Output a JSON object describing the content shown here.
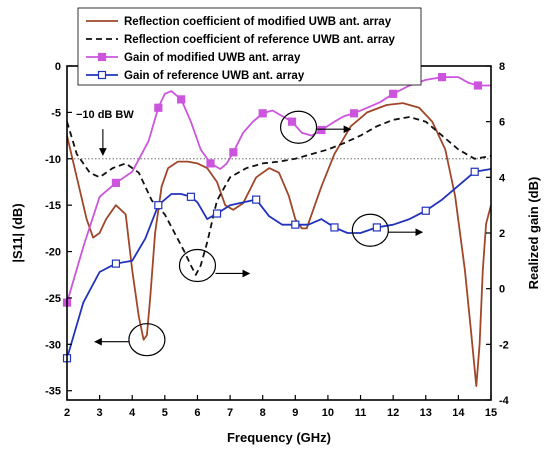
{
  "chart_data": {
    "type": "line",
    "xlabel": "Frequency (GHz)",
    "ylabel_left": "|S11| (dB)",
    "ylabel_right": "Realized gain (dB)",
    "xlim": [
      2,
      15
    ],
    "ylim_left": [
      -36,
      0
    ],
    "ylim_right": [
      -4,
      8
    ],
    "xticks": [
      2,
      3,
      4,
      5,
      6,
      7,
      8,
      9,
      10,
      11,
      12,
      13,
      14,
      15
    ],
    "yticks_left": [
      0,
      -5,
      -10,
      -15,
      -20,
      -25,
      -30,
      -35
    ],
    "yticks_right": [
      -4,
      -2,
      0,
      2,
      4,
      6,
      8
    ],
    "threshold": {
      "value": -10,
      "label": "−10 dB BW"
    },
    "legend": {
      "placement": "top-center"
    },
    "colors": {
      "modified_s11": "#a0472a",
      "reference_s11": "#111111",
      "modified_gain": "#cc55dd",
      "reference_gain": "#2233bb",
      "threshold": "#555555"
    },
    "series": [
      {
        "name": "Reflection coefficient of modified UWB ant. array",
        "axis": "left",
        "style": "solid",
        "x": [
          2.0,
          2.3,
          2.6,
          2.8,
          3.0,
          3.2,
          3.5,
          3.8,
          4.0,
          4.2,
          4.35,
          4.45,
          4.55,
          4.7,
          4.9,
          5.1,
          5.4,
          5.7,
          6.0,
          6.3,
          6.6,
          6.85,
          7.1,
          7.4,
          7.8,
          8.2,
          8.5,
          8.8,
          9.0,
          9.2,
          9.35,
          9.5,
          9.8,
          10.2,
          10.7,
          11.2,
          11.8,
          12.3,
          12.8,
          13.2,
          13.6,
          13.9,
          14.2,
          14.4,
          14.55,
          14.65,
          14.75,
          14.85,
          15.0
        ],
        "y": [
          -7.5,
          -12,
          -16.5,
          -18.5,
          -18,
          -16.5,
          -15,
          -16,
          -22,
          -27,
          -29.5,
          -29,
          -25,
          -18,
          -13,
          -11,
          -10.3,
          -10.3,
          -10.5,
          -11,
          -12.5,
          -15,
          -15.5,
          -14.8,
          -12,
          -11,
          -11.5,
          -14,
          -16.5,
          -17.5,
          -17.5,
          -16,
          -13,
          -9.5,
          -6.5,
          -5,
          -4.2,
          -4,
          -4.5,
          -6,
          -9,
          -14,
          -22,
          -29,
          -34.5,
          -30,
          -22,
          -17,
          -15
        ]
      },
      {
        "name": "Reflection coefficient of reference UWB ant. array",
        "axis": "left",
        "style": "dashed",
        "x": [
          2.0,
          2.3,
          2.7,
          3.0,
          3.4,
          3.8,
          4.2,
          4.6,
          5.0,
          5.3,
          5.6,
          5.8,
          5.95,
          6.1,
          6.3,
          6.6,
          7.0,
          7.5,
          8.0,
          8.5,
          9.0,
          9.5,
          10.0,
          10.5,
          11.0,
          11.5,
          12.0,
          12.5,
          13.0,
          13.5,
          14.0,
          14.5,
          15.0
        ],
        "y": [
          -6,
          -9.5,
          -11.5,
          -12,
          -11,
          -10.5,
          -11.5,
          -14.5,
          -16,
          -18,
          -20,
          -21.5,
          -22.5,
          -21.5,
          -19,
          -14.5,
          -12,
          -11,
          -10.5,
          -10.3,
          -10,
          -9.5,
          -9,
          -8.3,
          -7.5,
          -6.5,
          -5.8,
          -5.5,
          -6,
          -7.5,
          -9,
          -10,
          -9.7
        ]
      },
      {
        "name": "Gain of modified UWB ant. array",
        "axis": "right",
        "style": "solid",
        "marker": "filled-square",
        "x": [
          2.0,
          2.5,
          3.0,
          3.5,
          4.0,
          4.5,
          4.8,
          5.0,
          5.2,
          5.5,
          5.8,
          6.1,
          6.4,
          6.7,
          6.9,
          7.1,
          7.4,
          7.7,
          8.0,
          8.3,
          8.6,
          8.9,
          9.2,
          9.5,
          9.8,
          10.2,
          10.5,
          10.8,
          11.2,
          11.6,
          12.0,
          12.5,
          13.0,
          13.5,
          14.0,
          14.3,
          14.6,
          15.0
        ],
        "y": [
          -0.5,
          1.5,
          3.3,
          3.8,
          4.2,
          5.3,
          6.5,
          7.0,
          7.1,
          6.8,
          6.0,
          5.0,
          4.5,
          4.3,
          4.5,
          4.9,
          5.6,
          6.0,
          6.3,
          6.4,
          6.2,
          6.0,
          5.6,
          5.5,
          5.7,
          6.0,
          6.2,
          6.3,
          6.5,
          6.7,
          7.0,
          7.3,
          7.5,
          7.6,
          7.6,
          7.4,
          7.3,
          7.3
        ]
      },
      {
        "name": "Gain of reference UWB ant. array",
        "axis": "right",
        "style": "solid",
        "marker": "open-square",
        "x": [
          2.0,
          2.5,
          3.0,
          3.5,
          4.0,
          4.4,
          4.8,
          5.2,
          5.5,
          5.8,
          6.0,
          6.3,
          6.6,
          7.0,
          7.4,
          7.8,
          8.2,
          8.6,
          9.0,
          9.4,
          9.8,
          10.2,
          10.6,
          11.0,
          11.5,
          12.0,
          12.5,
          13.0,
          13.5,
          14.0,
          14.5,
          15.0
        ],
        "y": [
          -2.5,
          -0.5,
          0.6,
          0.9,
          1.0,
          1.8,
          3.0,
          3.4,
          3.4,
          3.3,
          3.1,
          2.5,
          2.7,
          3.0,
          3.1,
          3.2,
          2.6,
          2.3,
          2.3,
          2.3,
          2.5,
          2.2,
          2.0,
          2.0,
          2.2,
          2.3,
          2.5,
          2.8,
          3.2,
          3.7,
          4.2,
          4.3
        ]
      }
    ],
    "annotations": [
      {
        "type": "circle",
        "x": 4.45,
        "axis": "left",
        "y": -29.5,
        "arrow": "left"
      },
      {
        "type": "circle",
        "x": 6.0,
        "axis": "left",
        "y": -21.5,
        "arrow": "right"
      },
      {
        "type": "circle",
        "x": 9.1,
        "axis": "right",
        "y": 5.8,
        "arrow": "right"
      },
      {
        "type": "circle",
        "x": 11.3,
        "axis": "right",
        "y": 2.1,
        "arrow": "right"
      }
    ]
  }
}
